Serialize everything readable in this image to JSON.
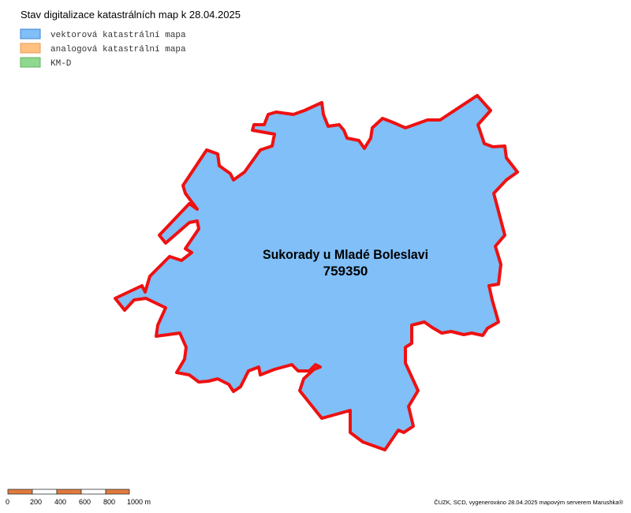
{
  "header": {
    "title": "Stav digitalizace katastrálních map k 28.04.2025"
  },
  "legend": [
    {
      "label": "vektorová katastrální mapa",
      "color": "#80bff8",
      "border": "#3a86d6"
    },
    {
      "label": "analogová katastrální mapa",
      "color": "#ffc080",
      "border": "#e89a50"
    },
    {
      "label": "KM-D",
      "color": "#90d890",
      "border": "#60b060"
    }
  ],
  "map": {
    "parcel_name": "Sukorady u Mladé Boleslavi",
    "parcel_code": "759350"
  },
  "scale_bar": {
    "labels": [
      "0",
      "200",
      "400",
      "600",
      "800",
      "1000 m"
    ]
  },
  "footer": {
    "credit": "ČUZK, SCD, vygenerováno 28.04.2025 mapovým serverem Marushka®"
  }
}
